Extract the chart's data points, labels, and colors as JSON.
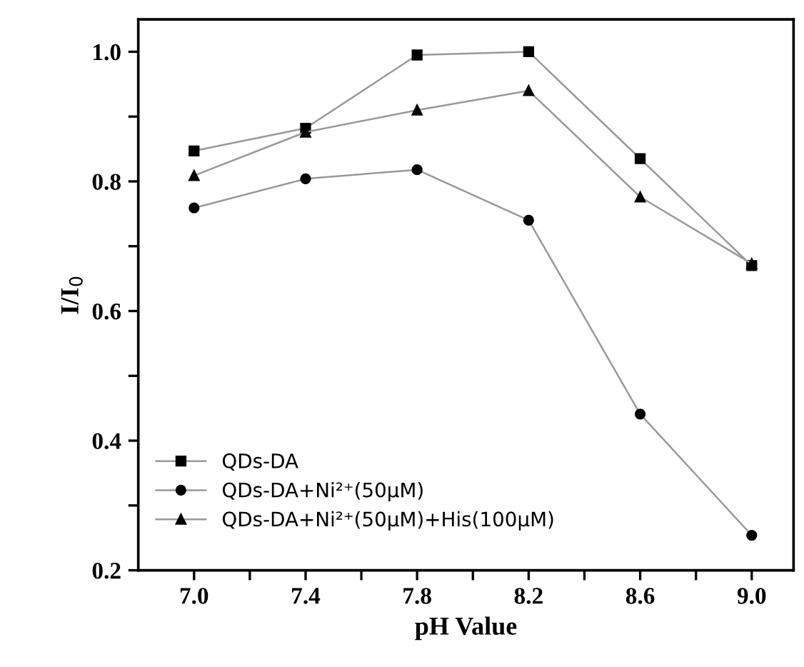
{
  "chart_data": {
    "type": "line",
    "xlabel": "pH Value",
    "ylabel": "I/I$_{0}$",
    "x": [
      7.0,
      7.4,
      7.8,
      8.2,
      8.6,
      9.0
    ],
    "series": [
      {
        "name": "QDs-DA",
        "color": "#000000",
        "marker": "square",
        "values": [
          0.847,
          0.882,
          0.995,
          1.0,
          0.835,
          0.67
        ]
      },
      {
        "name": "QDs-DA+Ni²⁺(50μM)",
        "color": "#000000",
        "marker": "circle",
        "values": [
          0.759,
          0.804,
          0.818,
          0.74,
          0.441,
          0.254
        ]
      },
      {
        "name": "QDs-DA+Ni²⁺(50μM)+His(100μM)",
        "color": "#000000",
        "marker": "triangle",
        "values": [
          0.809,
          0.876,
          0.91,
          0.94,
          0.776,
          0.673
        ]
      }
    ],
    "xlim": [
      6.8,
      9.15
    ],
    "xticks": [
      {
        "value": 7.0,
        "label": "7.0"
      },
      {
        "value": 7.2,
        "label": null
      },
      7.4,
      {
        "value": 7.6,
        "label": null
      },
      7.8,
      {
        "value": 8.0,
        "label": null
      },
      8.2,
      {
        "value": 8.4,
        "label": null
      },
      8.6,
      {
        "value": 8.8,
        "label": null
      },
      {
        "value": 9.0,
        "label": "9.0"
      }
    ],
    "ylim": [
      0.2,
      1.05
    ],
    "yticks": [
      0.2,
      {
        "value": 0.3,
        "label": null
      },
      0.4,
      {
        "value": 0.5,
        "label": null
      },
      0.6,
      {
        "value": 0.7,
        "label": null
      },
      0.8,
      {
        "value": 0.9,
        "label": null
      },
      {
        "value": 1.0,
        "label": "1.0"
      }
    ],
    "legend": "bottom left",
    "grid": false,
    "line_style": "solid"
  }
}
